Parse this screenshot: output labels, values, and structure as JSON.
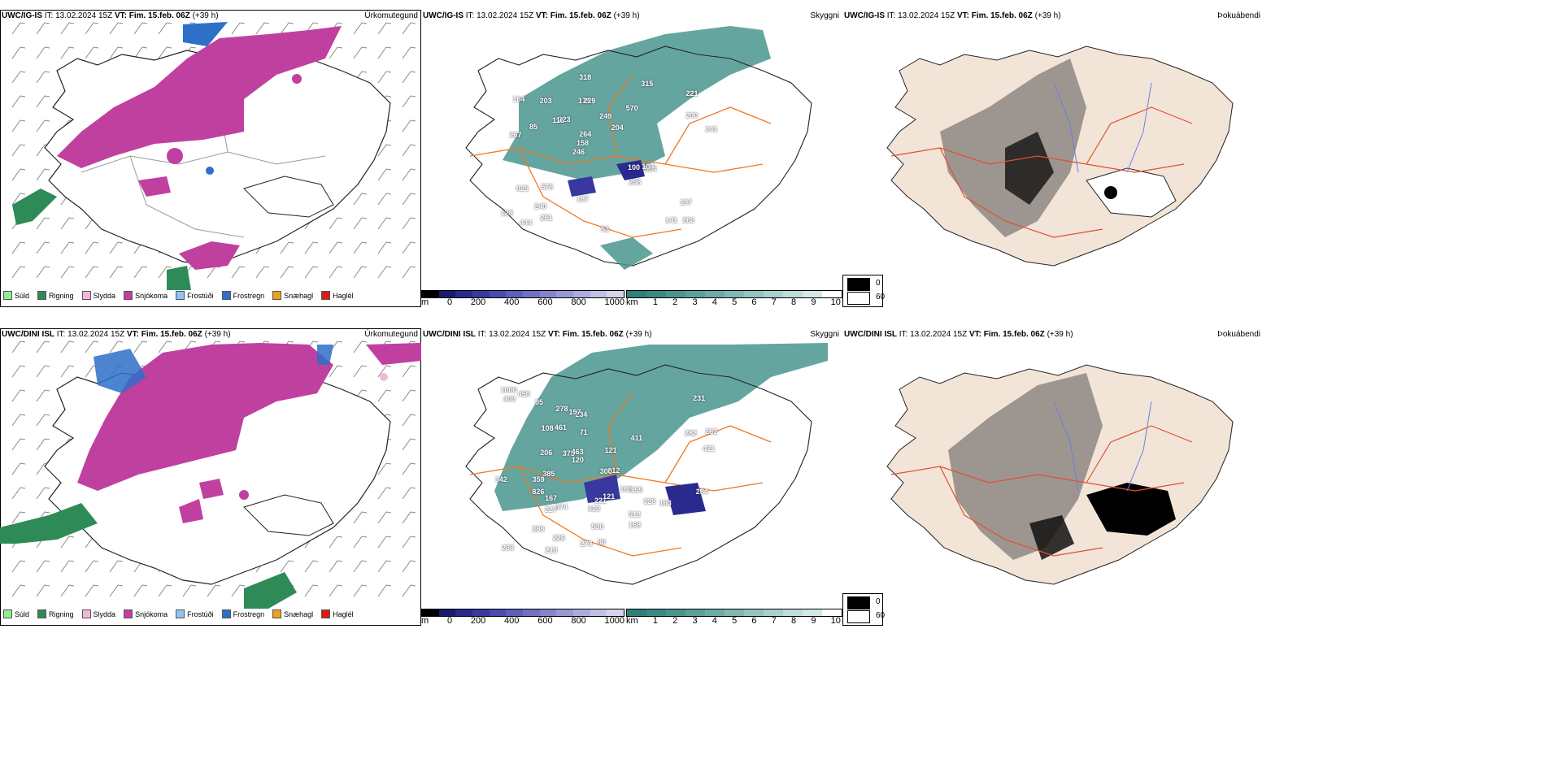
{
  "rows": [
    {
      "model": "UWC/IG-IS",
      "it_label": "IT:",
      "it_value": "13.02.2024 15Z",
      "vt_label": "VT:",
      "vt_value": "Fim. 15.feb. 06Z",
      "lead": "(+39 h)"
    },
    {
      "model": "UWC/DINI ISL",
      "it_label": "IT:",
      "it_value": "13.02.2024 15Z",
      "vt_label": "VT:",
      "vt_value": "Fim. 15.feb. 06Z",
      "lead": "(+39 h)"
    }
  ],
  "fields": {
    "precip_type": "Úrkomutegund",
    "visibility": "Skyggni",
    "fog": "Þokuábendi"
  },
  "precip_legend": [
    {
      "label": "Súld",
      "color": "#90ee90"
    },
    {
      "label": "Rigning",
      "color": "#2e8b57"
    },
    {
      "label": "Slydda",
      "color": "#f2b8dc"
    },
    {
      "label": "Snjókoma",
      "color": "#c040a0"
    },
    {
      "label": "Frostúði",
      "color": "#8fc4f0"
    },
    {
      "label": "Frostregn",
      "color": "#2e6fc8"
    },
    {
      "label": "Snæhagl",
      "color": "#f0a020"
    },
    {
      "label": "Haglél",
      "color": "#e01818"
    }
  ],
  "ceiling_bar": {
    "unit": "m",
    "ticks": [
      "0",
      "200",
      "400",
      "600",
      "800",
      "1000"
    ],
    "colors": [
      "#000000",
      "#1a1a6e",
      "#2a2a8e",
      "#3838a0",
      "#4a4ab0",
      "#5e5ebc",
      "#7070c4",
      "#8484cc",
      "#9898d4",
      "#acacdc",
      "#c0c0e4",
      "#d4d4ec"
    ]
  },
  "visibility_bar": {
    "unit": "km",
    "ticks": [
      "1",
      "2",
      "3",
      "4",
      "5",
      "6",
      "7",
      "8",
      "9",
      "10"
    ],
    "colors": [
      "#2f7f7a",
      "#3a8a84",
      "#4a958f",
      "#5ba19b",
      "#6caca7",
      "#7fb8b3",
      "#94c4bf",
      "#a9d0cc",
      "#bedcd9",
      "#d4e8e6",
      "#ffffff"
    ]
  },
  "fog_legend": {
    "high": "0",
    "low": "60"
  },
  "ceiling_values": {
    "top": [
      "262",
      "267",
      "221",
      "246",
      "570",
      "444",
      "175",
      "249",
      "825",
      "223",
      "128",
      "240",
      "229",
      "204",
      "584",
      "164",
      "318",
      "241",
      "100",
      "200",
      "158",
      "187",
      "264",
      "203",
      "315",
      "576",
      "141",
      "197",
      "104",
      "53",
      "116",
      "85",
      "258",
      "251"
    ],
    "bottom": [
      "409",
      "1000",
      "342",
      "231",
      "262",
      "512",
      "234",
      "374",
      "208",
      "328",
      "227",
      "212",
      "213",
      "826",
      "221",
      "375",
      "320",
      "298",
      "461",
      "463",
      "421",
      "536",
      "226",
      "385",
      "359",
      "121",
      "167",
      "163",
      "273",
      "197",
      "169",
      "278",
      "282",
      "284",
      "300",
      "206",
      "95",
      "120",
      "168",
      "411",
      "108",
      "80",
      "155",
      "71",
      "450",
      "121"
    ]
  }
}
